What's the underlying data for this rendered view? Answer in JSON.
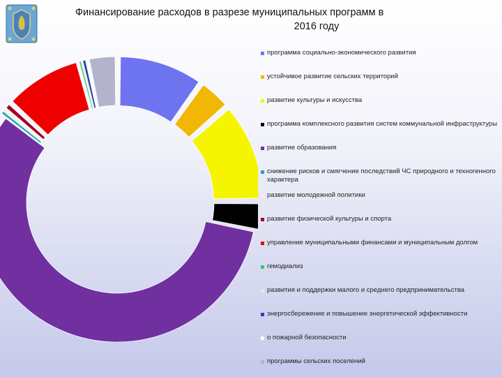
{
  "page": {
    "title_line1": "Финансирование расходов в разрезе муниципальных программ в",
    "title_line2": "2016 году",
    "logo_icon": "municipal-coat-of-arms"
  },
  "chart_data": {
    "type": "pie",
    "variant": "doughnut-exploded",
    "title": "Финансирование расходов в разрезе муниципальных программ в 2016 году",
    "legend_position": "right",
    "series": [
      {
        "name": "программа социально-экономического развития",
        "value": 9.6,
        "color": "#6e74f0"
      },
      {
        "name": "устойчивое развитие сельских территорий",
        "value": 3.6,
        "color": "#f2b705"
      },
      {
        "name": "развитие культуры и искусства",
        "value": 11.1,
        "color": "#f5f500"
      },
      {
        "name": "программа комплексного развития систем коммунальной инфраструктуры",
        "value": 3.2,
        "color": "#000000"
      },
      {
        "name": "развитие образования",
        "value": 55.8,
        "color": "#7030a0"
      },
      {
        "name": "снижение рисков и смягчение последствий ЧС природного и техногенного характера",
        "value": 0.3,
        "color": "#22a8b0"
      },
      {
        "name": "развитие молодежной политики",
        "value": 0.3,
        "color": "#f0f0f0"
      },
      {
        "name": "развитие физической культуры и спорта",
        "value": 0.8,
        "color": "#a50021"
      },
      {
        "name": "управление муниципальными финансами и муниципальным долгом",
        "value": 8.7,
        "color": "#ee0000"
      },
      {
        "name": "гемодиализ",
        "value": 0.2,
        "color": "#33cc66"
      },
      {
        "name": "развития и поддержки малого и среднего предпринимательства",
        "value": 0.2,
        "color": "#e8e8f0"
      },
      {
        "name": "энергосбережение и повышение энергетической эффективности",
        "value": 0.3,
        "color": "#3040b0"
      },
      {
        "name": "о пожарной безопасности",
        "value": 0.2,
        "color": "#ffffff"
      },
      {
        "name": "программы сельских поселений",
        "value": 3.2,
        "color": "#b3b3cc"
      }
    ]
  }
}
